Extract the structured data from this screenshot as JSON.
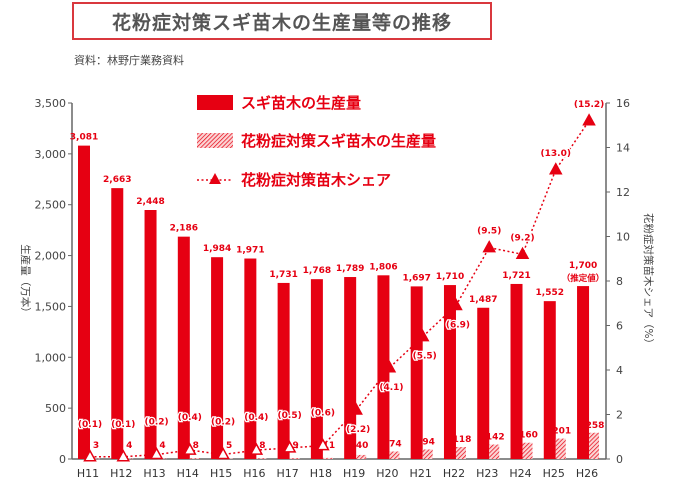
{
  "chart_data": {
    "type": "bar",
    "title": "花粉症対策スギ苗木の生産量等の推移",
    "source": "資料：林野庁業務資料",
    "categories": [
      "H11",
      "H12",
      "H13",
      "H14",
      "H15",
      "H16",
      "H17",
      "H18",
      "H19",
      "H20",
      "H21",
      "H22",
      "H23",
      "H24",
      "H25",
      "H26"
    ],
    "ylabel": "生産量（万本）",
    "y2label": "花粉症対策苗木シェア（%）",
    "ylim": [
      0,
      3500
    ],
    "y2lim": [
      0,
      16
    ],
    "yticks": [
      "0",
      "500",
      "1,000",
      "1,500",
      "2,000",
      "2,500",
      "3,000",
      "3,500"
    ],
    "y2ticks": [
      "0",
      "2",
      "4",
      "6",
      "8",
      "10",
      "12",
      "14",
      "16"
    ],
    "series": [
      {
        "name": "スギ苗木の生産量",
        "kind": "bar",
        "color": "#e60012",
        "values": [
          3081,
          2663,
          2448,
          2186,
          1984,
          1971,
          1731,
          1768,
          1789,
          1806,
          1697,
          1710,
          1487,
          1721,
          1552,
          1700
        ],
        "labels": [
          "3,081",
          "2,663",
          "2,448",
          "2,186",
          "1,984",
          "1,971",
          "1,731",
          "1,768",
          "1,789",
          "1,806",
          "1,697",
          "1,710",
          "1,487",
          "1,721",
          "1,552",
          "1,700"
        ]
      },
      {
        "name": "花粉症対策スギ苗木の生産量",
        "kind": "hatched-bar",
        "color": "#e60012",
        "values": [
          3,
          4,
          4,
          8,
          5,
          8,
          9,
          11,
          40,
          74,
          94,
          118,
          142,
          160,
          201,
          258
        ]
      },
      {
        "name": "花粉症対策苗木シェア",
        "kind": "line",
        "axis": "right",
        "color": "#e60012",
        "values": [
          0.1,
          0.1,
          0.2,
          0.4,
          0.2,
          0.4,
          0.5,
          0.6,
          2.2,
          4.1,
          5.5,
          6.9,
          9.5,
          9.2,
          13.0,
          15.2
        ],
        "labels": [
          "(0.1)",
          "(0.1)",
          "(0.2)",
          "(0.4)",
          "(0.2)",
          "(0.4)",
          "(0.5)",
          "(0.6)",
          "(2.2)",
          "(4.1)",
          "(5.5)",
          "(6.9)",
          "(9.5)",
          "(9.2)",
          "(13.0)",
          "(15.2)"
        ]
      }
    ],
    "annotation": "（推定値）",
    "legend_position": "top-center"
  }
}
